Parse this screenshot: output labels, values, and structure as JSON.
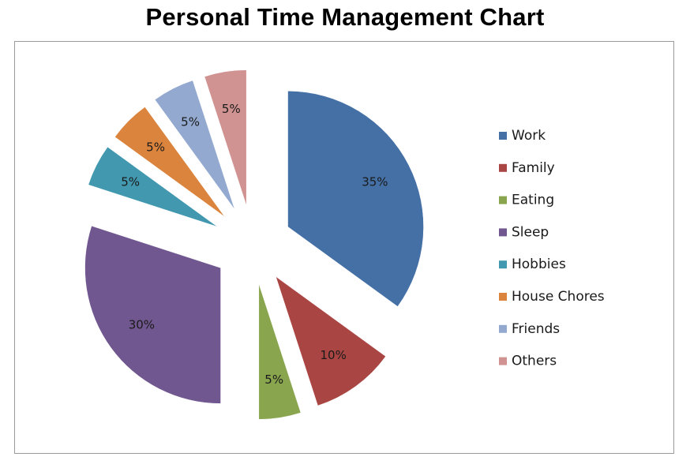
{
  "chart_data": {
    "type": "pie",
    "title": "Personal Time Management Chart",
    "exploded": true,
    "legend_position": "right",
    "slices": [
      {
        "label": "Work",
        "value": 35,
        "display": "35%",
        "color": "#4470A6"
      },
      {
        "label": "Family",
        "value": 10,
        "display": "10%",
        "color": "#A94643"
      },
      {
        "label": "Eating",
        "value": 5,
        "display": "5%",
        "color": "#89A54E"
      },
      {
        "label": "Sleep",
        "value": 30,
        "display": "30%",
        "color": "#71578F"
      },
      {
        "label": "Hobbies",
        "value": 5,
        "display": "5%",
        "color": "#4198AF"
      },
      {
        "label": "House Chores",
        "value": 5,
        "display": "5%",
        "color": "#DB843D"
      },
      {
        "label": "Friends",
        "value": 5,
        "display": "5%",
        "color": "#93A9D0"
      },
      {
        "label": "Others",
        "value": 5,
        "display": "5%",
        "color": "#D09392"
      }
    ]
  }
}
